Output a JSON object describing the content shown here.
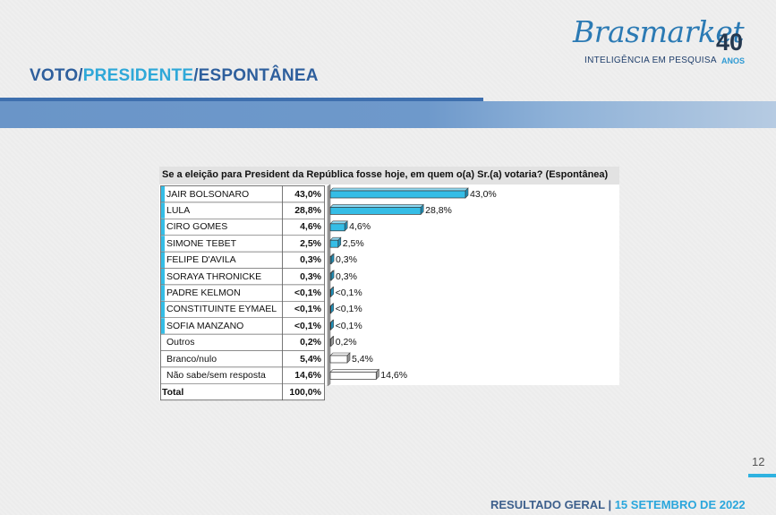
{
  "page_title": {
    "part1": "VOTO/",
    "part2": "PRESIDENTE",
    "part3": "/ESPONTÂNEA"
  },
  "logo": {
    "script": "Brasmarket",
    "number": "40",
    "tagline": "INTELIGÊNCIA EM PESQUISA",
    "anos": "ANOS"
  },
  "footer": {
    "label": "RESULTADO GERAL | ",
    "date": "15  SETEMBRO DE 2022"
  },
  "page_number": "12",
  "colors": {
    "candidate_bar": "#35bde6",
    "other_bar": "#ffffff",
    "title_blue": "#2e5f9d",
    "title_accent": "#2fa8d8"
  },
  "chart_data": {
    "type": "bar",
    "orientation": "horizontal",
    "title": "Se a eleição para President da República fosse hoje, em quem o(a) Sr.(a) votaria? (Espontânea)",
    "categories": [
      "JAIR BOLSONARO",
      "LULA",
      "CIRO GOMES",
      "SIMONE TEBET",
      "FELIPE D'AVILA",
      "SORAYA THRONICKE",
      "PADRE KELMON",
      "CONSTITUINTE EYMAEL",
      "SOFIA MANZANO",
      "Outros",
      "Branco/nulo",
      "Não sabe/sem resposta"
    ],
    "values": [
      43.0,
      28.8,
      4.6,
      2.5,
      0.3,
      0.3,
      0.05,
      0.05,
      0.05,
      0.2,
      5.4,
      14.6
    ],
    "labels": [
      "43,0%",
      "28,8%",
      "4,6%",
      "2,5%",
      "0,3%",
      "0,3%",
      "<0,1%",
      "<0,1%",
      "<0,1%",
      "0,2%",
      "5,4%",
      "14,6%"
    ],
    "highlight": [
      true,
      true,
      true,
      true,
      true,
      true,
      true,
      true,
      true,
      false,
      false,
      false
    ],
    "total_label": "Total",
    "total_value": "100,0%",
    "xlim": [
      0,
      43
    ]
  }
}
